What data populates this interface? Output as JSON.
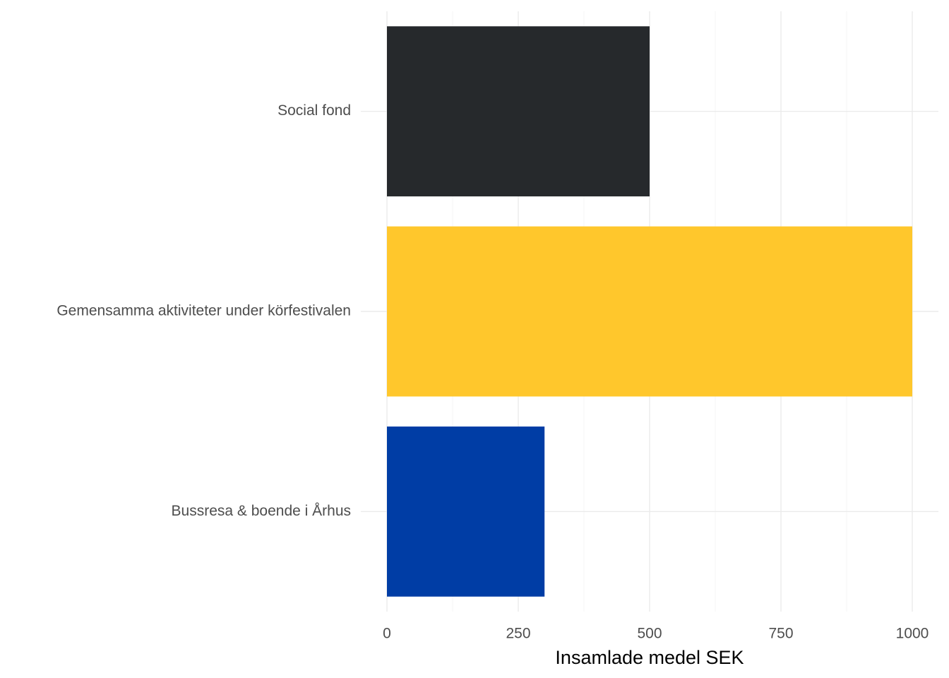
{
  "chart_data": {
    "type": "bar",
    "orientation": "horizontal",
    "categories": [
      "Bussresa & boende i Århus",
      "Gemensamma aktiviteter under körfestivalen",
      "Social fond"
    ],
    "values": [
      300,
      1000,
      500
    ],
    "colors": [
      "#003DA5",
      "#FFC72C",
      "#26292C"
    ],
    "title": "",
    "xlabel": "Insamlade medel SEK",
    "ylabel": "",
    "xlim": [
      0,
      1000
    ],
    "xticks": [
      0,
      250,
      500,
      750,
      1000
    ],
    "xtick_labels": [
      "0",
      "250",
      "500",
      "750",
      "1000"
    ],
    "grid": true,
    "legend": "none"
  }
}
